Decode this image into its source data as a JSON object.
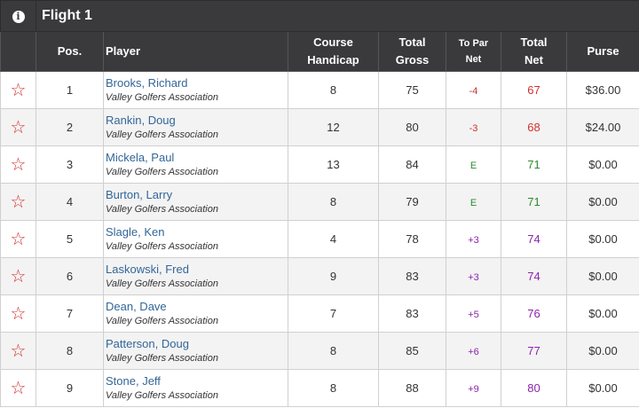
{
  "flight": {
    "title": "Flight 1",
    "info_icon": "info-circle-icon"
  },
  "columns": {
    "pos": "Pos.",
    "player": "Player",
    "handicap_1": "Course",
    "handicap_2": "Handicap",
    "gross_1": "Total",
    "gross_2": "Gross",
    "topar_1": "To Par",
    "topar_2": "Net",
    "net_1": "Total",
    "net_2": "Net",
    "purse": "Purse"
  },
  "colors": {
    "under": "#d32f2f",
    "even": "#2e8b2e",
    "over": "#8e24aa",
    "header_bg": "#3a3a3c"
  },
  "rows": [
    {
      "star": "☆",
      "pos": "1",
      "name": "Brooks, Richard",
      "club": "Valley Golfers Association",
      "handicap": "8",
      "gross": "75",
      "to_par": "-4",
      "net": "67",
      "status": "under",
      "purse": "$36.00"
    },
    {
      "star": "☆",
      "pos": "2",
      "name": "Rankin, Doug",
      "club": "Valley Golfers Association",
      "handicap": "12",
      "gross": "80",
      "to_par": "-3",
      "net": "68",
      "status": "under",
      "purse": "$24.00"
    },
    {
      "star": "☆",
      "pos": "3",
      "name": "Mickela, Paul",
      "club": "Valley Golfers Association",
      "handicap": "13",
      "gross": "84",
      "to_par": "E",
      "net": "71",
      "status": "even",
      "purse": "$0.00"
    },
    {
      "star": "☆",
      "pos": "4",
      "name": "Burton, Larry",
      "club": "Valley Golfers Association",
      "handicap": "8",
      "gross": "79",
      "to_par": "E",
      "net": "71",
      "status": "even",
      "purse": "$0.00"
    },
    {
      "star": "☆",
      "pos": "5",
      "name": "Slagle, Ken",
      "club": "Valley Golfers Association",
      "handicap": "4",
      "gross": "78",
      "to_par": "+3",
      "net": "74",
      "status": "over",
      "purse": "$0.00"
    },
    {
      "star": "☆",
      "pos": "6",
      "name": "Laskowski, Fred",
      "club": "Valley Golfers Association",
      "handicap": "9",
      "gross": "83",
      "to_par": "+3",
      "net": "74",
      "status": "over",
      "purse": "$0.00"
    },
    {
      "star": "☆",
      "pos": "7",
      "name": "Dean, Dave",
      "club": "Valley Golfers Association",
      "handicap": "7",
      "gross": "83",
      "to_par": "+5",
      "net": "76",
      "status": "over",
      "purse": "$0.00"
    },
    {
      "star": "☆",
      "pos": "8",
      "name": "Patterson, Doug",
      "club": "Valley Golfers Association",
      "handicap": "8",
      "gross": "85",
      "to_par": "+6",
      "net": "77",
      "status": "over",
      "purse": "$0.00"
    },
    {
      "star": "☆",
      "pos": "9",
      "name": "Stone, Jeff",
      "club": "Valley Golfers Association",
      "handicap": "8",
      "gross": "88",
      "to_par": "+9",
      "net": "80",
      "status": "over",
      "purse": "$0.00"
    }
  ]
}
